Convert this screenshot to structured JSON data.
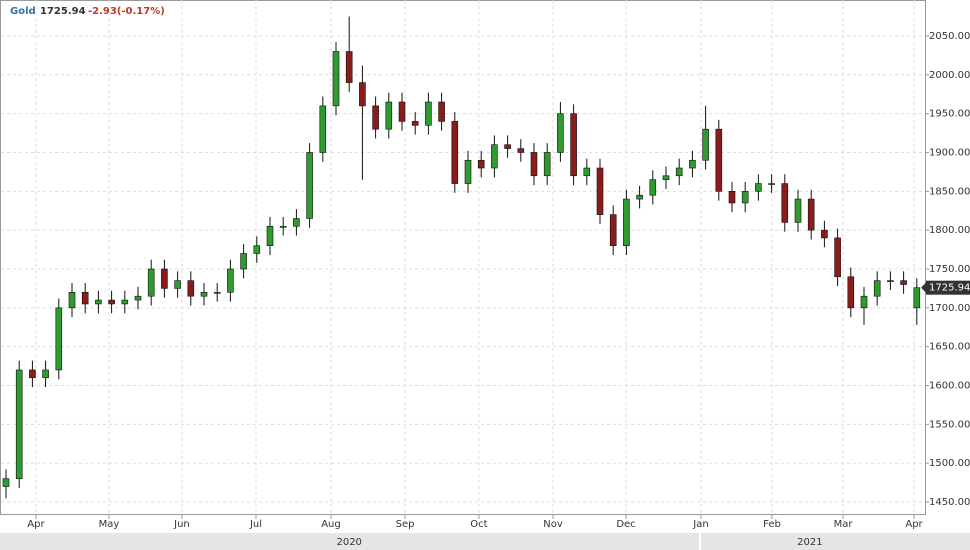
{
  "chart_data": {
    "type": "candlestick",
    "header": {
      "name": "Gold",
      "price": 1725.94,
      "change": "-2.93(-0.17%)"
    },
    "open": [
      1470,
      1480,
      1620,
      1610,
      1620,
      1700,
      1720,
      1705,
      1710,
      1705,
      1710,
      1715,
      1750,
      1725,
      1735,
      1715,
      1720,
      1720,
      1750,
      1770,
      1780,
      1805,
      1805,
      1815,
      1900,
      1960,
      2030,
      1990,
      1960,
      1930,
      1965,
      1940,
      1935,
      1965,
      1940,
      1860,
      1890,
      1880,
      1910,
      1905,
      1900,
      1870,
      1900,
      1950,
      1870,
      1880,
      1820,
      1780,
      1840,
      1845,
      1865,
      1870,
      1880,
      1890,
      1930,
      1850,
      1835,
      1850,
      1860,
      1860,
      1810,
      1840,
      1800,
      1790,
      1740,
      1700,
      1715,
      1735,
      1735,
      1700
    ],
    "high": [
      1492,
      1632,
      1632,
      1632,
      1712,
      1732,
      1732,
      1722,
      1722,
      1722,
      1727,
      1762,
      1762,
      1747,
      1747,
      1732,
      1732,
      1762,
      1782,
      1792,
      1817,
      1817,
      1827,
      1912,
      1972,
      2042,
      2075,
      2012,
      1972,
      1977,
      1977,
      1952,
      1977,
      1977,
      1952,
      1902,
      1902,
      1922,
      1922,
      1917,
      1912,
      1912,
      1965,
      1962,
      1892,
      1892,
      1832,
      1852,
      1857,
      1877,
      1882,
      1892,
      1902,
      1960,
      1942,
      1862,
      1862,
      1872,
      1872,
      1872,
      1852,
      1852,
      1812,
      1802,
      1752,
      1727,
      1747,
      1747,
      1747,
      1738
    ],
    "low": [
      1455,
      1468,
      1598,
      1598,
      1608,
      1688,
      1693,
      1693,
      1693,
      1693,
      1698,
      1703,
      1713,
      1713,
      1703,
      1703,
      1708,
      1708,
      1738,
      1758,
      1768,
      1793,
      1793,
      1803,
      1888,
      1948,
      1978,
      1865,
      1918,
      1918,
      1928,
      1923,
      1923,
      1928,
      1848,
      1848,
      1868,
      1868,
      1893,
      1888,
      1858,
      1858,
      1888,
      1858,
      1858,
      1808,
      1768,
      1768,
      1828,
      1833,
      1853,
      1858,
      1868,
      1878,
      1838,
      1823,
      1823,
      1838,
      1848,
      1798,
      1798,
      1788,
      1778,
      1728,
      1688,
      1678,
      1703,
      1723,
      1718,
      1678
    ],
    "close": [
      1480,
      1620,
      1610,
      1620,
      1700,
      1720,
      1705,
      1710,
      1705,
      1710,
      1715,
      1750,
      1725,
      1735,
      1715,
      1720,
      1720,
      1750,
      1770,
      1780,
      1805,
      1805,
      1815,
      1900,
      1960,
      2030,
      1990,
      1960,
      1930,
      1965,
      1940,
      1935,
      1965,
      1940,
      1860,
      1890,
      1880,
      1910,
      1905,
      1900,
      1870,
      1900,
      1950,
      1870,
      1880,
      1820,
      1780,
      1840,
      1845,
      1865,
      1870,
      1880,
      1890,
      1930,
      1850,
      1835,
      1850,
      1860,
      1860,
      1810,
      1840,
      1800,
      1790,
      1740,
      1700,
      1715,
      1735,
      1735,
      1730,
      1725.94
    ],
    "up_color": "#2f9a2f",
    "down_color": "#8b1c1c",
    "ylim": [
      1433.3,
      2096.3
    ],
    "yticks": [
      {
        "value": 1450,
        "label": "1450.00"
      },
      {
        "value": 1500,
        "label": "1500.00"
      },
      {
        "value": 1550,
        "label": "1550.00"
      },
      {
        "value": 1600,
        "label": "1600.00"
      },
      {
        "value": 1650,
        "label": "1650.00"
      },
      {
        "value": 1700,
        "label": "1700.00"
      },
      {
        "value": 1750,
        "label": "1750.00"
      },
      {
        "value": 1800,
        "label": "1800.00"
      },
      {
        "value": 1850,
        "label": "1850.00"
      },
      {
        "value": 1900,
        "label": "1900.00"
      },
      {
        "value": 1950,
        "label": "1950.00"
      },
      {
        "value": 2000,
        "label": "2000.00"
      },
      {
        "value": 2050,
        "label": "2050.00"
      }
    ],
    "xticks": [
      {
        "value": 2.27,
        "label": "Apr"
      },
      {
        "value": 7.8,
        "label": "May"
      },
      {
        "value": 13.33,
        "label": "Jun"
      },
      {
        "value": 18.94,
        "label": "Jul"
      },
      {
        "value": 24.62,
        "label": "Aug"
      },
      {
        "value": 30.23,
        "label": "Sep"
      },
      {
        "value": 35.83,
        "label": "Oct"
      },
      {
        "value": 41.44,
        "label": "Nov"
      },
      {
        "value": 46.97,
        "label": "Dec"
      },
      {
        "value": 52.65,
        "label": "Jan"
      },
      {
        "value": 58.03,
        "label": "Feb"
      },
      {
        "value": 63.41,
        "label": "Mar"
      },
      {
        "value": 68.79,
        "label": "Apr"
      }
    ],
    "year_labels": [
      {
        "value": 26,
        "label": "2020"
      },
      {
        "value": 60.9,
        "label": "2021"
      }
    ],
    "grid": true
  }
}
